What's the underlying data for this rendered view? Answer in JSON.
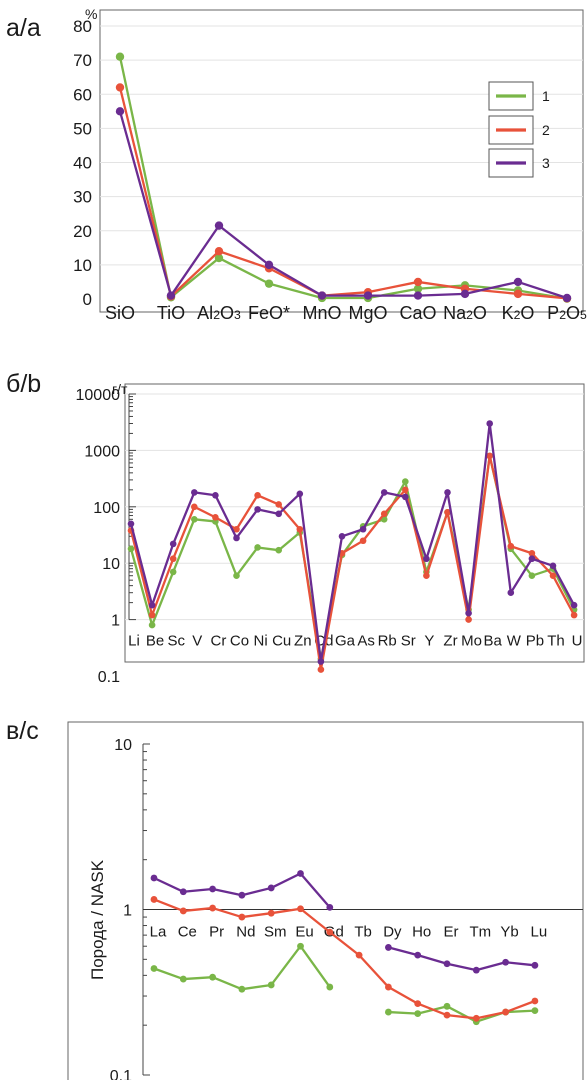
{
  "colors": {
    "series1": "#7ab648",
    "series2": "#e8523a",
    "series3": "#6a2c91"
  },
  "panels": {
    "a": "а/a",
    "b": "б/b",
    "c": "в/с"
  },
  "chart_data": [
    {
      "type": "line",
      "title": "",
      "ylabel": "%",
      "yscale": "linear",
      "ylim": [
        0,
        80
      ],
      "yticks": [
        0,
        10,
        20,
        30,
        40,
        50,
        60,
        70,
        80
      ],
      "grid": true,
      "legend": "top-right",
      "categories": [
        "SiO",
        "TiO",
        "Al2O3",
        "FeO*",
        "MnO",
        "MgO",
        "CaO",
        "Na2O",
        "K2O",
        "P2O5"
      ],
      "series": [
        {
          "name": "1",
          "values": [
            71,
            0.5,
            12,
            4.5,
            0.3,
            0.3,
            3,
            4,
            2.5,
            0.1
          ]
        },
        {
          "name": "2",
          "values": [
            62,
            0.8,
            14,
            9,
            1,
            2,
            5,
            3,
            1.5,
            0.2
          ]
        },
        {
          "name": "3",
          "values": [
            55,
            1,
            21.5,
            10,
            1,
            1,
            1,
            1.5,
            5,
            0.3
          ]
        }
      ]
    },
    {
      "type": "line",
      "title": "",
      "ylabel": "г/т",
      "yscale": "log",
      "ylim": [
        0.1,
        10000
      ],
      "yticks": [
        0.1,
        1,
        10,
        100,
        1000,
        10000
      ],
      "grid": true,
      "categories": [
        "Li",
        "Be",
        "Sc",
        "V",
        "Cr",
        "Co",
        "Ni",
        "Cu",
        "Zn",
        "Cd",
        "Ga",
        "As",
        "Rb",
        "Sr",
        "Y",
        "Zr",
        "Mo",
        "Ba",
        "W",
        "Pb",
        "Th",
        "U"
      ],
      "series": [
        {
          "values": [
            18,
            0.8,
            7,
            60,
            55,
            6,
            19,
            17,
            35,
            0.2,
            14,
            45,
            60,
            280,
            7,
            80,
            1.5,
            800,
            18,
            6,
            8,
            1.5
          ]
        },
        {
          "values": [
            38,
            1.2,
            12,
            100,
            65,
            40,
            160,
            110,
            40,
            0.13,
            15,
            25,
            75,
            200,
            6,
            80,
            1,
            800,
            20,
            15,
            6,
            1.2
          ]
        },
        {
          "values": [
            50,
            1.8,
            22,
            180,
            160,
            28,
            90,
            75,
            170,
            0.18,
            30,
            40,
            180,
            150,
            12,
            180,
            1.3,
            3000,
            3,
            12,
            9,
            1.8
          ]
        }
      ]
    },
    {
      "type": "line",
      "title": "",
      "ylabel": "Порода / NASK",
      "yscale": "log",
      "ylim": [
        0.1,
        10
      ],
      "yticks": [
        0.1,
        1,
        10
      ],
      "grid": false,
      "categories": [
        "La",
        "Ce",
        "Pr",
        "Nd",
        "Sm",
        "Eu",
        "Gd",
        "Tb",
        "Dy",
        "Ho",
        "Er",
        "Tm",
        "Yb",
        "Lu"
      ],
      "series": [
        {
          "values": [
            0.44,
            0.38,
            0.39,
            0.33,
            0.35,
            0.6,
            0.34,
            null,
            0.24,
            0.235,
            0.26,
            0.21,
            0.24,
            0.245
          ]
        },
        {
          "values": [
            1.15,
            0.98,
            1.02,
            0.9,
            0.95,
            1.01,
            0.73,
            0.53,
            0.34,
            0.27,
            0.23,
            0.22,
            0.24,
            0.28
          ]
        },
        {
          "values": [
            1.55,
            1.28,
            1.33,
            1.22,
            1.35,
            1.65,
            1.03,
            null,
            0.59,
            0.53,
            0.47,
            0.43,
            0.48,
            0.46
          ]
        }
      ]
    }
  ]
}
